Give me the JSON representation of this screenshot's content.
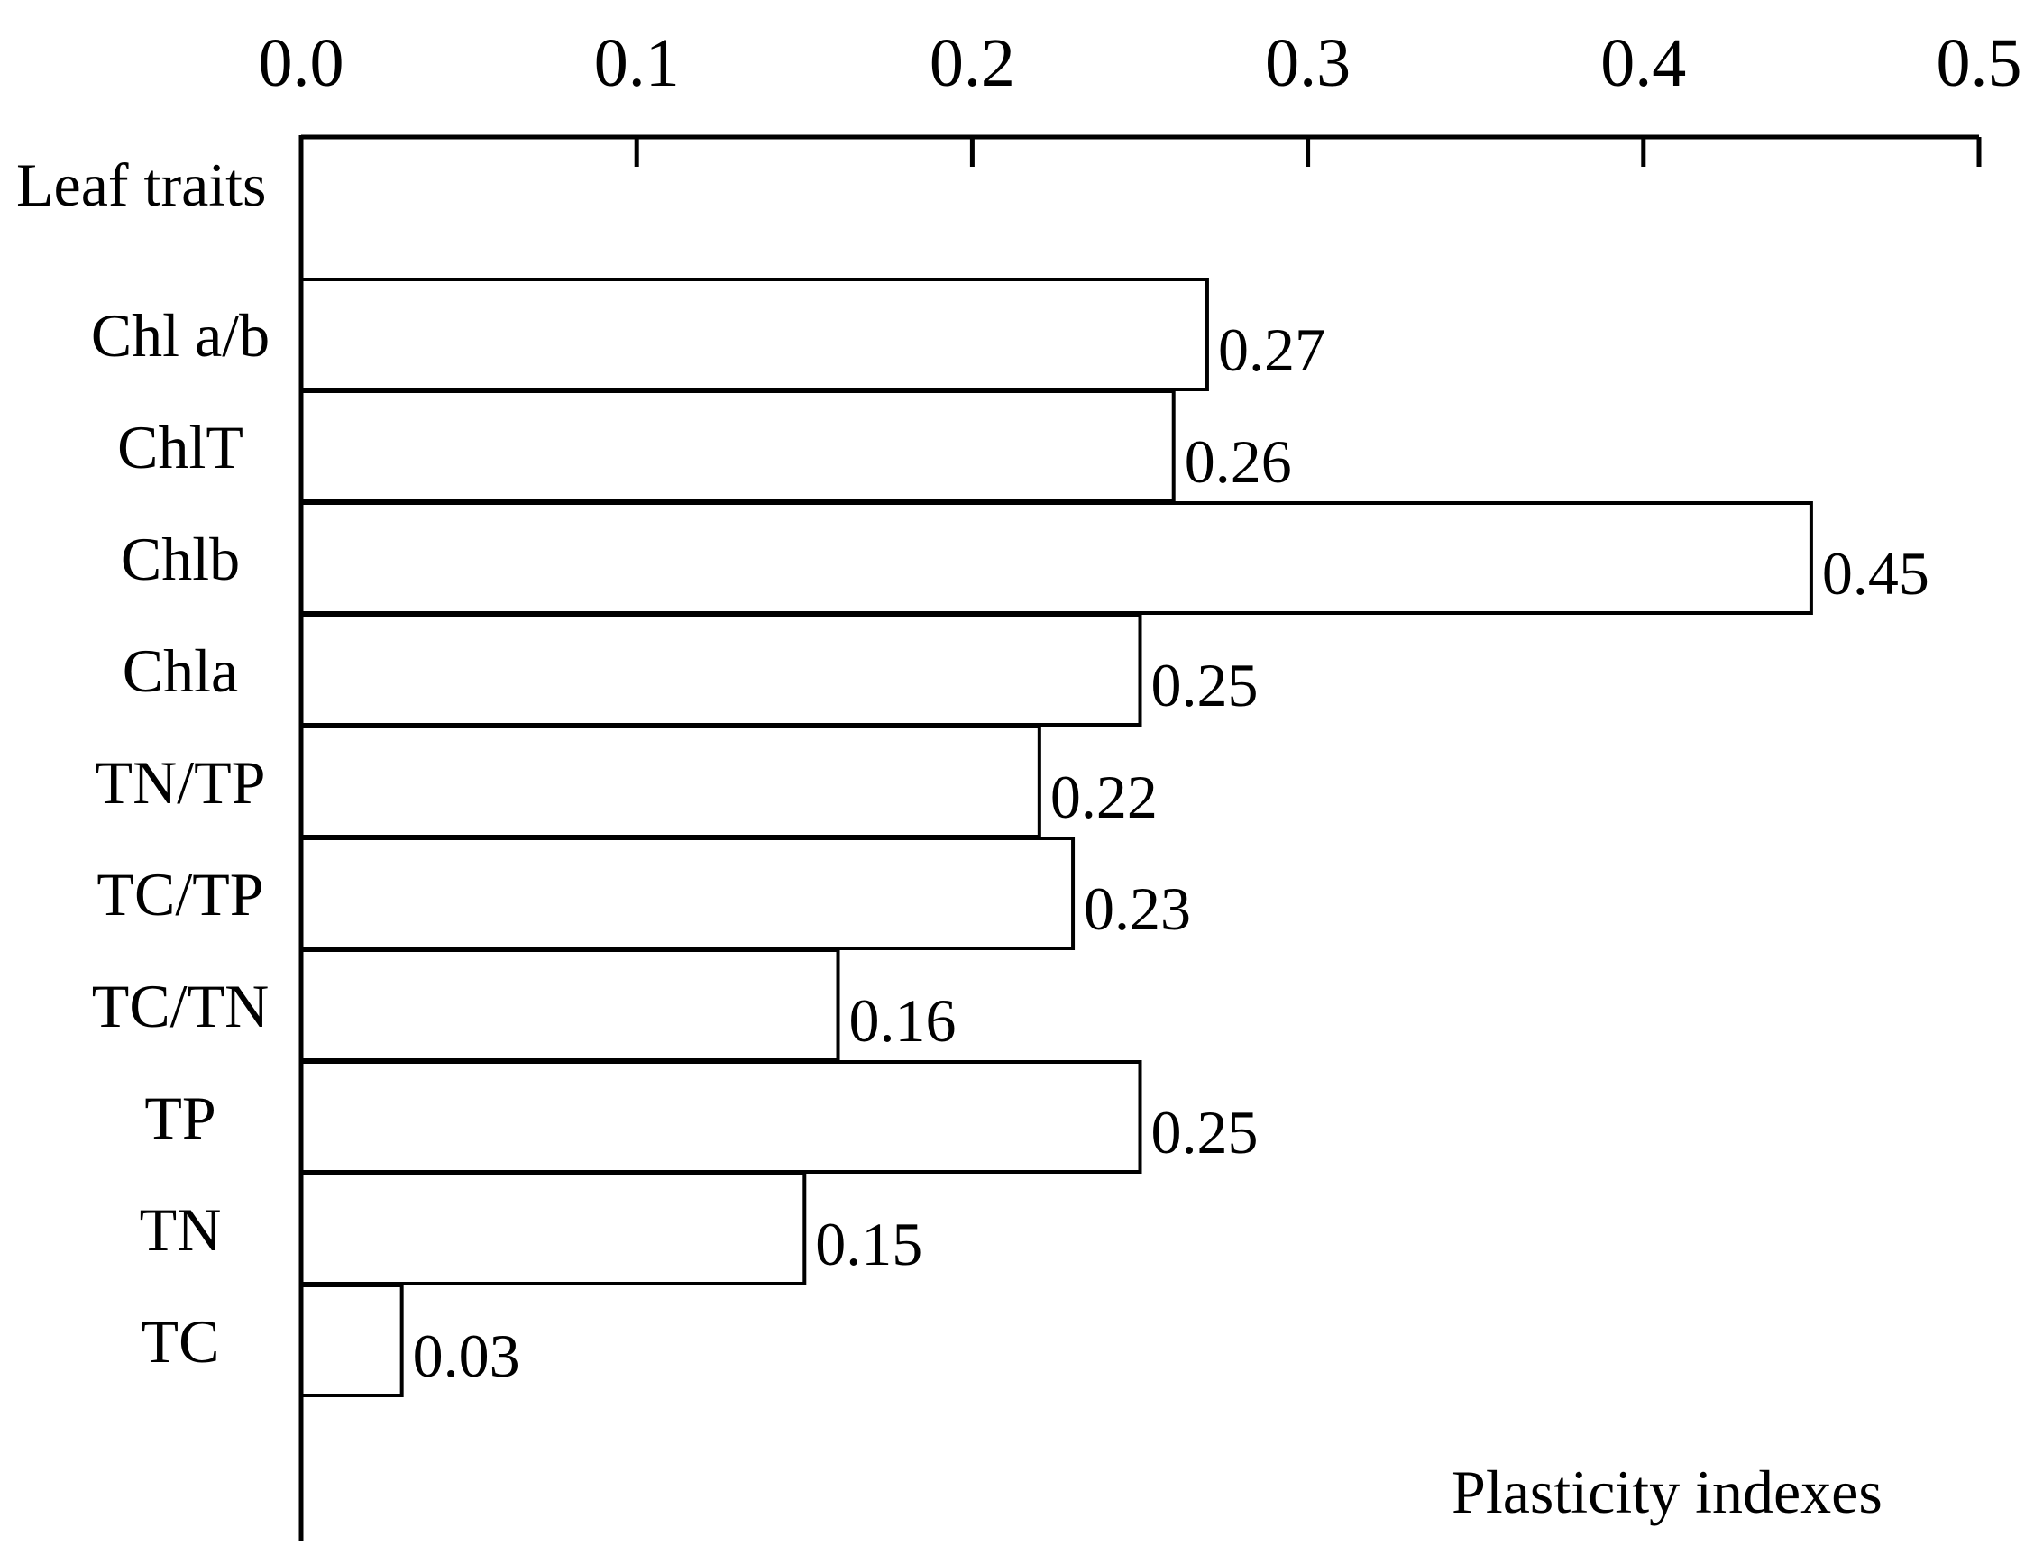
{
  "chart_data": {
    "type": "bar",
    "orientation": "horizontal",
    "ylabel": "Leaf traits",
    "xlabel": "Plasticity indexes",
    "xlim": [
      0.0,
      0.5
    ],
    "x_ticks": [
      "0.0",
      "0.1",
      "0.2",
      "0.3",
      "0.4",
      "0.5"
    ],
    "x_axis_position": "top",
    "grid": false,
    "legend": "none",
    "categories": [
      "Chl a/b",
      "ChlT",
      "Chlb",
      "Chla",
      "TN/TP",
      "TC/TP",
      "TC/TN",
      "TP",
      "TN",
      "TC"
    ],
    "values": [
      0.27,
      0.26,
      0.45,
      0.25,
      0.22,
      0.23,
      0.16,
      0.25,
      0.15,
      0.03
    ],
    "value_labels": [
      "0.27",
      "0.26",
      "0.45",
      "0.25",
      "0.22",
      "0.23",
      "0.16",
      "0.25",
      "0.15",
      "0.03"
    ],
    "colors": {
      "bar_fill": "#ffffff",
      "bar_stroke": "#000000"
    }
  }
}
